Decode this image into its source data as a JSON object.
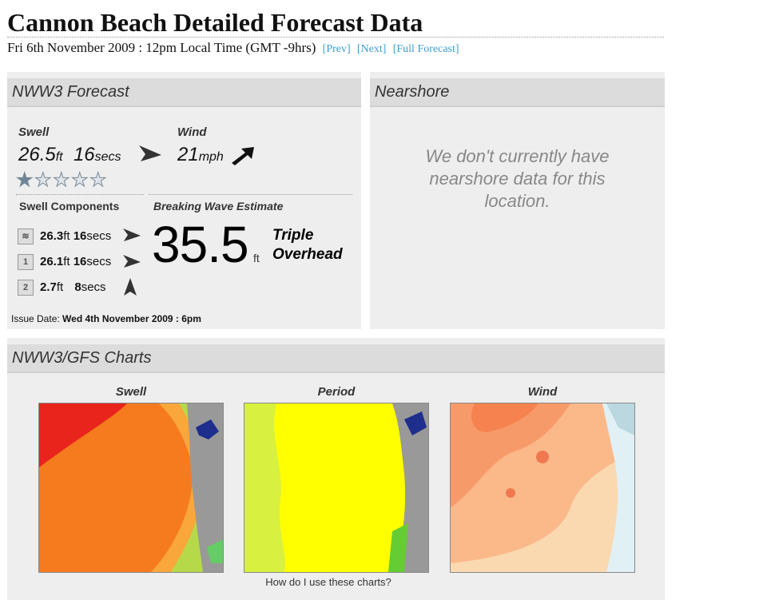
{
  "page": {
    "title": "Cannon Beach Detailed Forecast Data",
    "date_line": "Fri 6th November 2009 : 12pm Local Time (GMT -9hrs)",
    "nav": {
      "prev": "[Prev]",
      "next": "[Next]",
      "full": "[Full Forecast]"
    }
  },
  "nww3": {
    "heading": "NWW3 Forecast",
    "swell_label": "Swell",
    "swell_height": "26.5",
    "swell_height_unit": "ft",
    "swell_period": "16",
    "swell_period_unit": "secs",
    "wind_label": "Wind",
    "wind_speed": "21",
    "wind_unit": "mph",
    "rating_stars": 1,
    "rating_max": 5,
    "components_label": "Swell Components",
    "components": [
      {
        "icon": "swell-combined-icon",
        "height": "26.3",
        "unit": "ft",
        "period": "16",
        "period_unit": "secs"
      },
      {
        "icon": "swell-1-icon",
        "height": "26.1",
        "unit": "ft",
        "period": "16",
        "period_unit": "secs"
      },
      {
        "icon": "swell-2-icon",
        "height": "2.7",
        "unit": "ft",
        "period": "8",
        "period_unit": "secs"
      }
    ],
    "breaking_label": "Breaking Wave Estimate",
    "breaking_value": "35.5",
    "breaking_unit": "ft",
    "breaking_desc": "Triple Overhead",
    "issue_label": "Issue Date:",
    "issue_value": "Wed 4th November 2009 : 6pm"
  },
  "nearshore": {
    "heading": "Nearshore",
    "message": "We don't currently have nearshore data for this location."
  },
  "charts": {
    "heading": "NWW3/GFS Charts",
    "swell_label": "Swell",
    "period_label": "Period",
    "wind_label": "Wind",
    "help_text": "How do I use these charts?"
  },
  "colors": {
    "link": "#3a9fd0",
    "panel": "#eeeeee",
    "panel_head": "#dcdcdc"
  }
}
